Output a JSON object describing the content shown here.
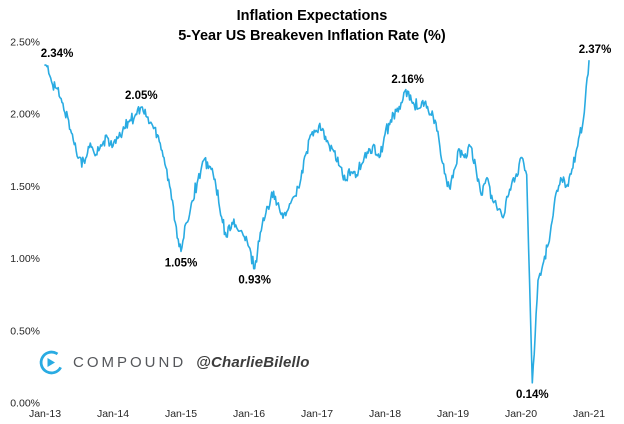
{
  "title": {
    "line1": "Inflation Expectations",
    "line2": "5-Year US Breakeven Inflation Rate (%)"
  },
  "branding": {
    "logo_text": "COMPOUND",
    "handle": "@CharlieBilello",
    "logo_color": "#29ABE2",
    "logo_text_color": "#55575b"
  },
  "chart_data": {
    "type": "line",
    "title": "Inflation Expectations",
    "subtitle": "5-Year US Breakeven Inflation Rate (%)",
    "line_color": "#29ABE2",
    "grid": false,
    "legend": false,
    "ylim": [
      0,
      2.5
    ],
    "y_ticks": [
      "0.00%",
      "0.50%",
      "1.00%",
      "1.50%",
      "2.00%",
      "2.50%"
    ],
    "x_ticks": [
      "Jan-13",
      "Jan-14",
      "Jan-15",
      "Jan-16",
      "Jan-17",
      "Jan-18",
      "Jan-19",
      "Jan-20",
      "Jan-21"
    ],
    "x_unit": "month",
    "noise_amplitude": 0.05,
    "series": [
      {
        "name": "5-Year US Breakeven Inflation Rate",
        "values": [
          2.34,
          2.25,
          2.18,
          2.08,
          1.98,
          1.82,
          1.7,
          1.66,
          1.8,
          1.72,
          1.78,
          1.84,
          1.78,
          1.84,
          1.9,
          1.96,
          2.0,
          2.05,
          1.98,
          1.92,
          1.85,
          1.7,
          1.5,
          1.25,
          1.05,
          1.25,
          1.4,
          1.55,
          1.68,
          1.64,
          1.55,
          1.3,
          1.15,
          1.25,
          1.2,
          1.16,
          1.08,
          0.93,
          1.18,
          1.32,
          1.46,
          1.38,
          1.28,
          1.35,
          1.43,
          1.52,
          1.72,
          1.86,
          1.88,
          1.9,
          1.8,
          1.74,
          1.64,
          1.54,
          1.6,
          1.58,
          1.66,
          1.73,
          1.79,
          1.7,
          1.86,
          1.96,
          2.02,
          2.08,
          2.16,
          2.08,
          2.04,
          2.08,
          2.0,
          1.94,
          1.68,
          1.5,
          1.56,
          1.76,
          1.7,
          1.78,
          1.64,
          1.44,
          1.56,
          1.4,
          1.34,
          1.3,
          1.48,
          1.56,
          1.7,
          1.58,
          0.14,
          0.85,
          0.98,
          1.12,
          1.42,
          1.56,
          1.5,
          1.62,
          1.78,
          1.96,
          2.37
        ]
      }
    ],
    "annotations": [
      {
        "label": "2.34%",
        "month": 0,
        "value": 2.34,
        "place": "above",
        "dx": 12
      },
      {
        "label": "2.05%",
        "month": 17,
        "value": 2.05,
        "place": "above",
        "dx": 0
      },
      {
        "label": "1.05%",
        "month": 24,
        "value": 1.05,
        "place": "below",
        "dx": 0
      },
      {
        "label": "0.93%",
        "month": 37,
        "value": 0.93,
        "place": "below",
        "dx": 0
      },
      {
        "label": "2.16%",
        "month": 64,
        "value": 2.16,
        "place": "above",
        "dx": 0
      },
      {
        "label": "0.14%",
        "month": 86,
        "value": 0.14,
        "place": "below",
        "dx": 0
      },
      {
        "label": "2.37%",
        "month": 96,
        "value": 2.37,
        "place": "above",
        "dx": 6
      }
    ]
  }
}
